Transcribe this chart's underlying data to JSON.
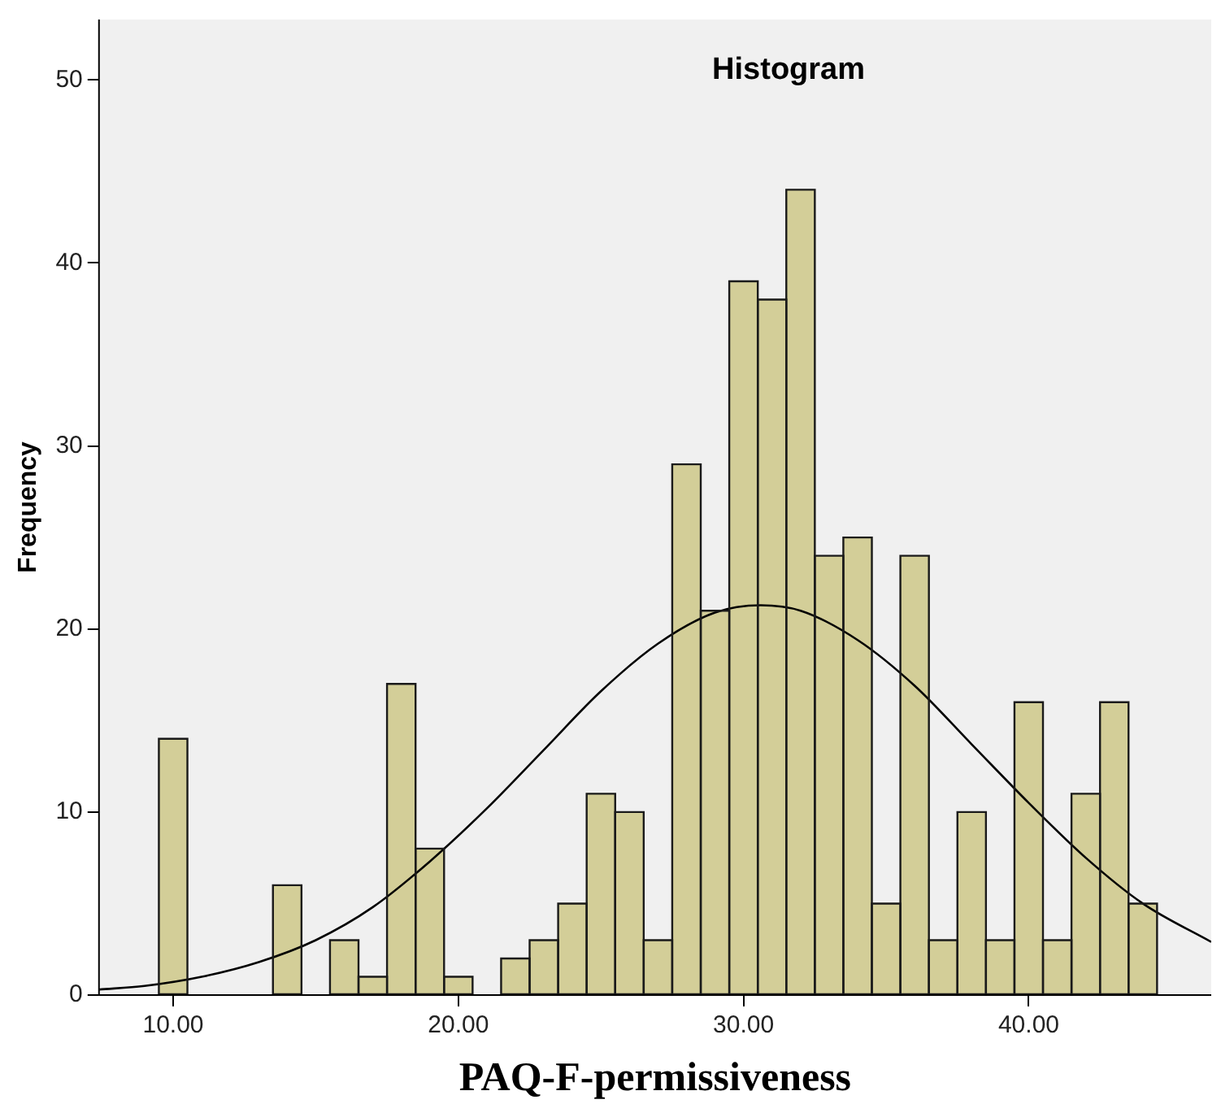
{
  "chart_data": {
    "type": "histogram",
    "title": "Histogram",
    "xlabel": "PAQ-F-permissiveness",
    "ylabel": "Frequency",
    "bins": [
      9.5,
      10.5,
      11.5,
      12.5,
      13.5,
      14.5,
      15.5,
      16.5,
      17.5,
      18.5,
      19.5,
      20.5,
      21.5,
      22.5,
      23.5,
      24.5,
      25.5,
      26.5,
      27.5,
      28.5,
      29.5,
      30.5,
      31.5,
      32.5,
      33.5,
      34.5,
      35.5,
      36.5,
      37.5,
      38.5,
      39.5,
      40.5,
      41.5,
      42.5,
      43.5,
      44.5
    ],
    "values": [
      14,
      0,
      0,
      0,
      6,
      0,
      3,
      1,
      17,
      8,
      1,
      0,
      2,
      3,
      5,
      11,
      10,
      3,
      29,
      21,
      39,
      38,
      44,
      24,
      25,
      5,
      24,
      3,
      10,
      3,
      16,
      3,
      11,
      16,
      5
    ],
    "color": "#d3ce98",
    "series": [
      {
        "type": "line",
        "color": "#000000",
        "x": [
          7.4,
          9,
          11,
          13,
          15,
          17,
          19,
          21,
          23,
          25,
          27,
          29,
          30.6,
          32,
          34,
          36,
          38,
          40,
          42,
          44,
          46.4
        ],
        "values": [
          0.3,
          0.5,
          1,
          1.8,
          3,
          4.8,
          7.3,
          10.2,
          13.4,
          16.6,
          19.2,
          20.9,
          21.3,
          21,
          19.4,
          16.9,
          13.7,
          10.5,
          7.5,
          5,
          2.9
        ]
      }
    ],
    "xlim": [
      7.4,
      46.4
    ],
    "ylim": [
      0,
      53.3
    ],
    "xticks": [
      {
        "value": 10,
        "label": "10.00"
      },
      {
        "value": 20,
        "label": "20.00"
      },
      {
        "value": 30,
        "label": "30.00"
      },
      {
        "value": 40,
        "label": "40.00"
      }
    ],
    "yticks": [
      0,
      10,
      20,
      30,
      40,
      50
    ],
    "grid": false
  }
}
